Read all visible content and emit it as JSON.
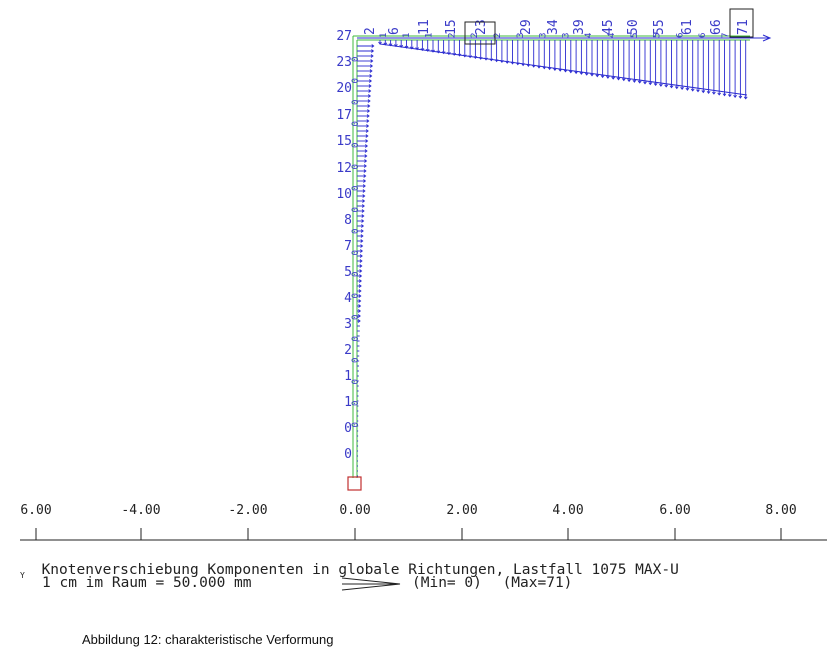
{
  "figure": {
    "x_axis_ticks": [
      "6.00",
      "-4.00",
      "-2.00",
      "0.00",
      "2.00",
      "4.00",
      "6.00",
      "8.00"
    ],
    "column_node_labels": [
      "27",
      "23",
      "20",
      "17",
      "15",
      "12",
      "10",
      "8",
      "7",
      "5",
      "4",
      "3",
      "2",
      "1",
      "1",
      "0",
      "0"
    ],
    "column_small_labels": [
      "0",
      "0",
      "0",
      "0",
      "0",
      "0",
      "0",
      "0",
      "0",
      "0",
      "0",
      "0",
      "0",
      "0",
      "0",
      "0",
      "0",
      "0"
    ],
    "beam_node_labels": [
      "2",
      "6",
      "11",
      "15",
      "23",
      "29",
      "34",
      "39",
      "45",
      "50",
      "55",
      "61",
      "66",
      "71"
    ],
    "beam_minor_labels": [
      "1",
      "1",
      "1",
      "2",
      "2",
      "2",
      "3",
      "3",
      "3",
      "4",
      "4",
      "5",
      "5",
      "6",
      "6",
      "7"
    ],
    "axis_letter": "Y",
    "title": "Knotenverschiebung Komponenten in globale Richtungen, Lastfall 1075  MAX-U",
    "scale_text": "1 cm im Raum =  50.000 mm",
    "min_text": "(Min= 0)",
    "max_text": "(Max=71)",
    "colors": {
      "arrows": "#2b2bd0",
      "frame": "#3cb83c",
      "support": "#c03030",
      "box": "#222222"
    }
  },
  "caption": "Abbildung 12: charakteristische Verformung"
}
